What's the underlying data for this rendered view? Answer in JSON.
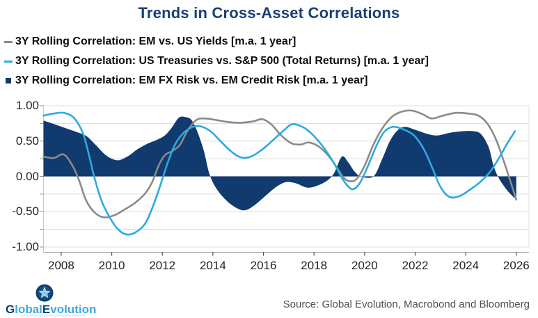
{
  "title": {
    "text": "Trends in Cross-Asset Correlations",
    "color": "#1B4077"
  },
  "legend": [
    {
      "label": "3Y Rolling Correlation: EM vs. US Yields [m.a. 1 year]",
      "marker": "dash",
      "color": "#8A8A8A"
    },
    {
      "label": "3Y Rolling Correlation: US Treasuries vs. S&P 500 (Total Returns) [m.a. 1 year]",
      "marker": "dash",
      "color": "#29ABE2"
    },
    {
      "label": "3Y Rolling Correlation: EM FX Risk vs. EM Credit Risk [m.a. 1 year]",
      "marker": "square",
      "color": "#113A6E"
    }
  ],
  "chart_data": {
    "type": "line",
    "title": "Trends in Cross-Asset Correlations",
    "xlabel": "",
    "ylabel": "",
    "xlim": [
      2007.3,
      2026.5
    ],
    "ylim": [
      -1.0,
      1.0
    ],
    "grid": "horizontal",
    "grid_step": 0.25,
    "legend_position": "top-left",
    "x_ticks": [
      2008,
      2010,
      2012,
      2014,
      2016,
      2018,
      2020,
      2022,
      2024,
      2026
    ],
    "y_tick_values": [
      1.0,
      0.5,
      0.0,
      -0.5,
      -1.0
    ],
    "y_tick_labels": [
      "1.00",
      "0.50",
      "0.00",
      "-0.50",
      "-1.00"
    ],
    "series": [
      {
        "name": "3Y Rolling Correlation: EM FX Risk vs. EM Credit Risk [m.a. 1 year]",
        "style": "area",
        "color": "#113A6E",
        "points": [
          [
            2007.3,
            0.79
          ],
          [
            2007.8,
            0.73
          ],
          [
            2008.2,
            0.68
          ],
          [
            2008.6,
            0.63
          ],
          [
            2009.0,
            0.57
          ],
          [
            2009.35,
            0.45
          ],
          [
            2009.7,
            0.32
          ],
          [
            2010.0,
            0.25
          ],
          [
            2010.3,
            0.23
          ],
          [
            2010.7,
            0.3
          ],
          [
            2011.0,
            0.38
          ],
          [
            2011.4,
            0.46
          ],
          [
            2011.8,
            0.52
          ],
          [
            2012.1,
            0.58
          ],
          [
            2012.35,
            0.68
          ],
          [
            2012.65,
            0.83
          ],
          [
            2012.9,
            0.84
          ],
          [
            2013.15,
            0.8
          ],
          [
            2013.4,
            0.62
          ],
          [
            2013.65,
            0.35
          ],
          [
            2013.85,
            0.05
          ],
          [
            2014.1,
            -0.15
          ],
          [
            2014.5,
            -0.33
          ],
          [
            2014.9,
            -0.44
          ],
          [
            2015.25,
            -0.48
          ],
          [
            2015.6,
            -0.42
          ],
          [
            2016.0,
            -0.3
          ],
          [
            2016.5,
            -0.15
          ],
          [
            2016.9,
            -0.08
          ],
          [
            2017.3,
            -0.1
          ],
          [
            2017.75,
            -0.16
          ],
          [
            2018.2,
            -0.12
          ],
          [
            2018.55,
            -0.05
          ],
          [
            2018.8,
            0.05
          ],
          [
            2019.1,
            0.28
          ],
          [
            2019.35,
            0.2
          ],
          [
            2019.6,
            0.07
          ],
          [
            2019.85,
            0.0
          ],
          [
            2020.35,
            0.0
          ],
          [
            2020.7,
            0.25
          ],
          [
            2021.0,
            0.5
          ],
          [
            2021.3,
            0.65
          ],
          [
            2021.6,
            0.7
          ],
          [
            2022.0,
            0.66
          ],
          [
            2022.5,
            0.6
          ],
          [
            2022.9,
            0.58
          ],
          [
            2023.4,
            0.62
          ],
          [
            2023.9,
            0.64
          ],
          [
            2024.3,
            0.64
          ],
          [
            2024.6,
            0.6
          ],
          [
            2024.9,
            0.42
          ],
          [
            2025.1,
            0.15
          ],
          [
            2025.3,
            -0.02
          ],
          [
            2025.6,
            -0.18
          ],
          [
            2025.85,
            -0.28
          ],
          [
            2026.0,
            -0.32
          ]
        ]
      },
      {
        "name": "3Y Rolling Correlation: EM vs. US Yields [m.a. 1 year]",
        "style": "line",
        "color": "#8A8A8A",
        "points": [
          [
            2007.3,
            0.28
          ],
          [
            2007.7,
            0.26
          ],
          [
            2008.1,
            0.31
          ],
          [
            2008.45,
            0.15
          ],
          [
            2008.7,
            -0.05
          ],
          [
            2009.0,
            -0.35
          ],
          [
            2009.35,
            -0.52
          ],
          [
            2009.7,
            -0.58
          ],
          [
            2010.1,
            -0.55
          ],
          [
            2010.5,
            -0.47
          ],
          [
            2010.9,
            -0.38
          ],
          [
            2011.3,
            -0.25
          ],
          [
            2011.6,
            -0.08
          ],
          [
            2011.85,
            0.15
          ],
          [
            2012.1,
            0.3
          ],
          [
            2012.4,
            0.36
          ],
          [
            2012.7,
            0.45
          ],
          [
            2013.0,
            0.65
          ],
          [
            2013.35,
            0.8
          ],
          [
            2013.7,
            0.82
          ],
          [
            2014.1,
            0.8
          ],
          [
            2014.6,
            0.77
          ],
          [
            2015.1,
            0.76
          ],
          [
            2015.6,
            0.78
          ],
          [
            2015.95,
            0.81
          ],
          [
            2016.3,
            0.74
          ],
          [
            2016.7,
            0.58
          ],
          [
            2017.1,
            0.47
          ],
          [
            2017.45,
            0.45
          ],
          [
            2017.8,
            0.48
          ],
          [
            2018.2,
            0.42
          ],
          [
            2018.6,
            0.28
          ],
          [
            2018.95,
            0.1
          ],
          [
            2019.2,
            -0.03
          ],
          [
            2019.45,
            -0.07
          ],
          [
            2019.7,
            -0.03
          ],
          [
            2020.0,
            0.15
          ],
          [
            2020.35,
            0.45
          ],
          [
            2020.7,
            0.68
          ],
          [
            2021.1,
            0.85
          ],
          [
            2021.5,
            0.92
          ],
          [
            2021.9,
            0.93
          ],
          [
            2022.3,
            0.88
          ],
          [
            2022.65,
            0.82
          ],
          [
            2023.1,
            0.86
          ],
          [
            2023.6,
            0.9
          ],
          [
            2024.1,
            0.89
          ],
          [
            2024.5,
            0.86
          ],
          [
            2024.85,
            0.75
          ],
          [
            2025.2,
            0.52
          ],
          [
            2025.5,
            0.22
          ],
          [
            2025.75,
            -0.05
          ],
          [
            2026.0,
            -0.33
          ]
        ]
      },
      {
        "name": "3Y Rolling Correlation: US Treasuries vs. S&P 500 (Total Returns) [m.a. 1 year]",
        "style": "line",
        "color": "#29ABE2",
        "points": [
          [
            2007.3,
            0.86
          ],
          [
            2007.7,
            0.89
          ],
          [
            2008.1,
            0.9
          ],
          [
            2008.5,
            0.83
          ],
          [
            2008.85,
            0.62
          ],
          [
            2009.1,
            0.3
          ],
          [
            2009.3,
            0.0
          ],
          [
            2009.6,
            -0.35
          ],
          [
            2009.95,
            -0.6
          ],
          [
            2010.25,
            -0.75
          ],
          [
            2010.55,
            -0.82
          ],
          [
            2010.9,
            -0.8
          ],
          [
            2011.3,
            -0.68
          ],
          [
            2011.6,
            -0.45
          ],
          [
            2011.9,
            -0.15
          ],
          [
            2012.2,
            0.18
          ],
          [
            2012.5,
            0.45
          ],
          [
            2012.85,
            0.62
          ],
          [
            2013.2,
            0.7
          ],
          [
            2013.5,
            0.71
          ],
          [
            2013.9,
            0.64
          ],
          [
            2014.3,
            0.5
          ],
          [
            2014.7,
            0.36
          ],
          [
            2015.1,
            0.27
          ],
          [
            2015.5,
            0.28
          ],
          [
            2015.95,
            0.38
          ],
          [
            2016.4,
            0.52
          ],
          [
            2016.8,
            0.65
          ],
          [
            2017.15,
            0.74
          ],
          [
            2017.6,
            0.69
          ],
          [
            2018.0,
            0.57
          ],
          [
            2018.4,
            0.4
          ],
          [
            2018.8,
            0.18
          ],
          [
            2019.15,
            -0.05
          ],
          [
            2019.5,
            -0.18
          ],
          [
            2019.8,
            -0.1
          ],
          [
            2020.1,
            0.12
          ],
          [
            2020.45,
            0.42
          ],
          [
            2020.75,
            0.62
          ],
          [
            2021.1,
            0.7
          ],
          [
            2021.5,
            0.67
          ],
          [
            2021.95,
            0.58
          ],
          [
            2022.35,
            0.38
          ],
          [
            2022.7,
            0.1
          ],
          [
            2023.0,
            -0.15
          ],
          [
            2023.35,
            -0.29
          ],
          [
            2023.75,
            -0.28
          ],
          [
            2024.2,
            -0.18
          ],
          [
            2024.6,
            -0.07
          ],
          [
            2024.95,
            0.06
          ],
          [
            2025.3,
            0.25
          ],
          [
            2025.6,
            0.44
          ],
          [
            2025.95,
            0.64
          ]
        ]
      }
    ]
  },
  "footer": {
    "logo": {
      "icon": "star-in-circle",
      "icon_outer_color": "#0B3E74",
      "icon_inner_color": "#155089",
      "icon_star_color": "#8FC8EA",
      "parts": [
        {
          "text": "G",
          "color": "#0B3E74"
        },
        {
          "text": "lobal",
          "color": "#3FA9DC"
        },
        {
          "text": "E",
          "color": "#0B3E74"
        },
        {
          "text": "volution",
          "color": "#3FA9DC"
        }
      ]
    },
    "source": "Source: Global Evolution, Macrobond and Bloomberg"
  }
}
